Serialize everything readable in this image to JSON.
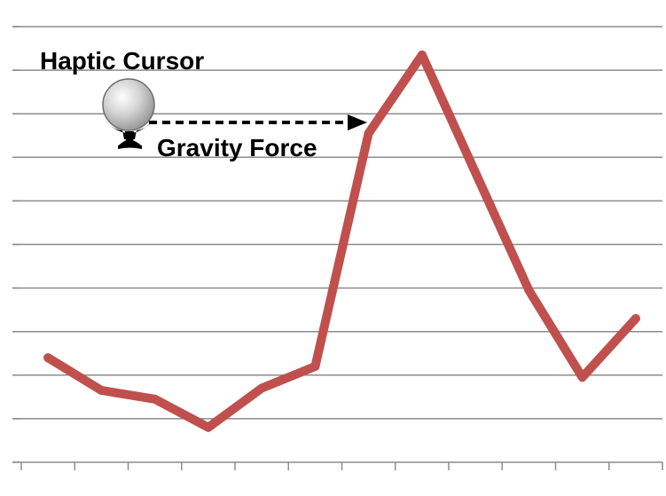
{
  "annotations": {
    "cursor_label": "Haptic Cursor",
    "force_label": "Gravity Force"
  },
  "colors": {
    "line": "#c0504d",
    "grid": "#8c8c8c",
    "arrow": "#000000",
    "sphere": "#c8c8c8"
  },
  "chart_data": {
    "type": "line",
    "title": "",
    "xlabel": "",
    "ylabel": "",
    "grid": true,
    "ylim": [
      0,
      10
    ],
    "x": [
      1,
      2,
      3,
      4,
      5,
      6,
      7,
      8,
      9,
      10,
      11,
      12
    ],
    "series": [
      {
        "values": [
          2.4,
          1.65,
          1.45,
          0.8,
          1.7,
          2.2,
          7.55,
          9.35,
          6.65,
          3.95,
          1.95,
          3.3
        ]
      }
    ]
  },
  "icons": {
    "cursor": "haptic-cursor-icon",
    "arrow": "dashed-arrow-icon"
  }
}
